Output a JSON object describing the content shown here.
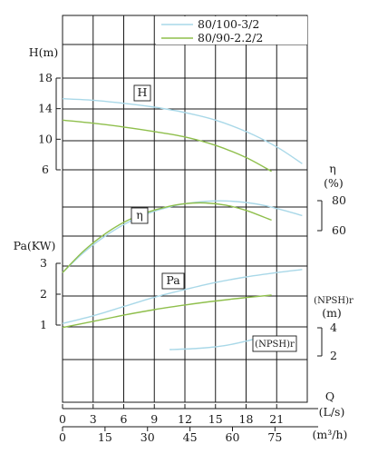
{
  "colors": {
    "series_1": "#a9d8e8",
    "series_2": "#8fbf4c",
    "grid": "#1a1a1a"
  },
  "legend": {
    "series_1": "80/100-3/2",
    "series_2": "80/90-2.2/2"
  },
  "chart_data": {
    "type": "line",
    "title": "",
    "grid": true,
    "legend_position": "top-right",
    "x_axis_flow_ls": {
      "label": "Q",
      "unit": "(L/s)",
      "ticks": [
        "0",
        "3",
        "6",
        "9",
        "12",
        "15",
        "18",
        "21"
      ],
      "range": [
        0,
        24
      ]
    },
    "x_axis_flow_m3h": {
      "unit": "(m³/h)",
      "ticks": [
        "0",
        "15",
        "30",
        "45",
        "60",
        "75"
      ]
    },
    "y_axis_head": {
      "label": "H(m)",
      "ticks": [
        "6",
        "10",
        "14",
        "18"
      ],
      "range": [
        6,
        18
      ]
    },
    "y_axis_efficiency": {
      "label": "η",
      "unit": "(%)",
      "ticks": [
        "60",
        "80"
      ],
      "range": [
        60,
        80
      ]
    },
    "y_axis_power": {
      "label": "Pa(KW)",
      "ticks": [
        "1",
        "2",
        "3"
      ],
      "range": [
        1,
        3
      ]
    },
    "y_axis_npsh": {
      "label": "(NPSH)r",
      "unit": "(m)",
      "ticks": [
        "2",
        "4"
      ],
      "range": [
        2,
        4
      ]
    },
    "curve_labels": {
      "head": "H",
      "efficiency": "η",
      "power": "Pa",
      "npsh": "(NPSH)r"
    },
    "series": [
      {
        "name": "80/100-3/2",
        "head": {
          "x": [
            0,
            3,
            6,
            9,
            12,
            15,
            18,
            21,
            23.5
          ],
          "y": [
            15.3,
            15.1,
            14.7,
            14.2,
            13.5,
            12.5,
            11.0,
            9.0,
            6.8
          ]
        },
        "efficiency": {
          "x": [
            0,
            2,
            4,
            6,
            8,
            10,
            12,
            14,
            16,
            18,
            20,
            22,
            23.5
          ],
          "y": [
            32,
            45,
            55.5,
            64,
            70.5,
            75,
            78,
            79.5,
            79.8,
            78.8,
            76.5,
            73,
            70
          ]
        },
        "power": {
          "x": [
            0,
            3,
            6,
            9,
            12,
            15,
            18,
            21,
            23.5
          ],
          "y": [
            1.05,
            1.3,
            1.6,
            1.9,
            2.15,
            2.38,
            2.56,
            2.7,
            2.8
          ]
        },
        "npsh": {
          "x": [
            10.5,
            13.5,
            16,
            18,
            19.5
          ],
          "y": [
            2.45,
            2.55,
            2.75,
            3.05,
            3.35
          ]
        }
      },
      {
        "name": "80/90-2.2/2",
        "head": {
          "x": [
            0,
            3,
            6,
            9,
            12,
            15,
            18,
            20.5
          ],
          "y": [
            12.5,
            12.1,
            11.6,
            11.0,
            10.3,
            9.2,
            7.6,
            5.8
          ]
        },
        "efficiency": {
          "x": [
            0,
            2,
            4,
            6,
            8,
            10,
            12,
            14,
            16,
            18,
            20.5
          ],
          "y": [
            32,
            46,
            57,
            65.5,
            71.5,
            75.5,
            78,
            78.5,
            77,
            73.5,
            67
          ]
        },
        "power": {
          "x": [
            0,
            3,
            6,
            9,
            12,
            15,
            18,
            20.5
          ],
          "y": [
            0.92,
            1.12,
            1.32,
            1.5,
            1.65,
            1.78,
            1.89,
            1.97
          ]
        }
      }
    ]
  }
}
